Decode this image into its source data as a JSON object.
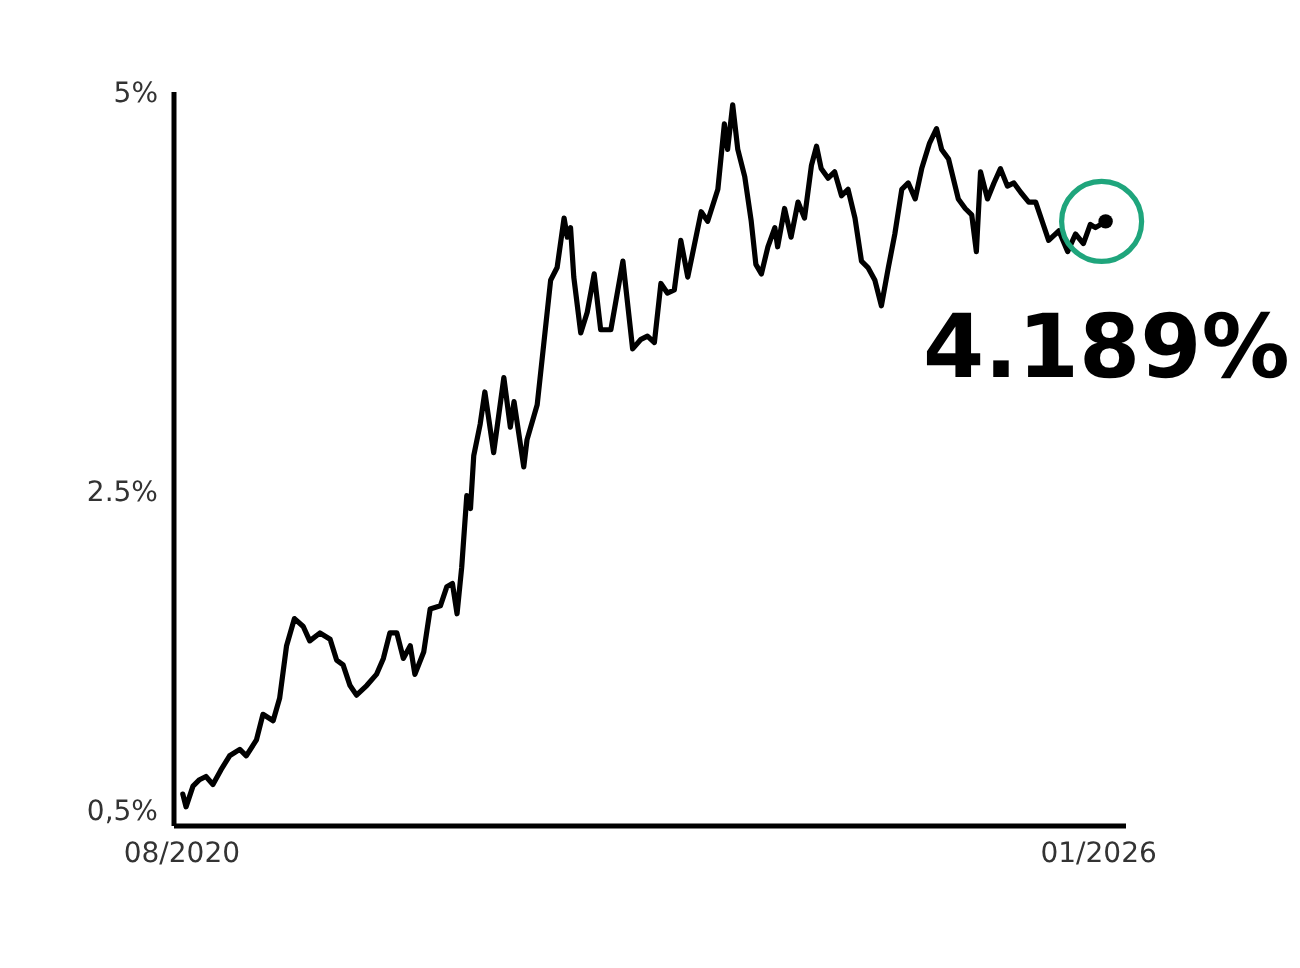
{
  "chart_data": {
    "type": "line",
    "x": [
      "2020-08-03",
      "2020-08-10",
      "2020-08-25",
      "2020-09-08",
      "2020-09-22",
      "2020-10-07",
      "2020-10-24",
      "2020-11-12",
      "2020-12-04",
      "2020-12-18",
      "2021-01-09",
      "2021-01-23",
      "2021-02-14",
      "2021-02-28",
      "2021-03-15",
      "2021-04-01",
      "2021-04-20",
      "2021-05-04",
      "2021-05-26",
      "2021-06-17",
      "2021-07-01",
      "2021-07-15",
      "2021-07-30",
      "2021-08-13",
      "2021-09-04",
      "2021-09-25",
      "2021-10-10",
      "2021-10-24",
      "2021-11-08",
      "2021-11-22",
      "2021-12-07",
      "2021-12-17",
      "2022-01-05",
      "2022-01-19",
      "2022-02-10",
      "2022-02-24",
      "2022-03-08",
      "2022-03-18",
      "2022-03-28",
      "2022-04-08",
      "2022-04-16",
      "2022-04-23",
      "2022-05-07",
      "2022-05-17",
      "2022-06-05",
      "2022-06-27",
      "2022-07-11",
      "2022-07-19",
      "2022-08-09",
      "2022-08-16",
      "2022-09-07",
      "2022-10-06",
      "2022-10-20",
      "2022-11-04",
      "2022-11-11",
      "2022-11-18",
      "2022-11-25",
      "2022-12-10",
      "2022-12-24",
      "2023-01-08",
      "2023-01-22",
      "2023-02-13",
      "2023-03-11",
      "2023-04-01",
      "2023-04-19",
      "2023-05-03",
      "2023-05-18",
      "2023-06-01",
      "2023-06-15",
      "2023-06-30",
      "2023-07-14",
      "2023-07-29",
      "2023-08-27",
      "2023-09-10",
      "2023-10-02",
      "2023-10-16",
      "2023-10-23",
      "2023-11-03",
      "2023-11-14",
      "2023-11-29",
      "2023-12-13",
      "2023-12-23",
      "2024-01-04",
      "2024-01-18",
      "2024-02-02",
      "2024-02-08",
      "2024-02-23",
      "2024-03-08",
      "2024-03-23",
      "2024-04-06",
      "2024-04-21",
      "2024-05-02",
      "2024-05-12",
      "2024-05-27",
      "2024-06-10",
      "2024-06-25",
      "2024-07-09",
      "2024-07-24",
      "2024-08-07",
      "2024-08-21",
      "2024-09-05",
      "2024-09-19",
      "2024-10-04",
      "2024-10-18",
      "2024-11-02",
      "2024-11-16",
      "2024-12-01",
      "2024-12-15",
      "2025-01-01",
      "2025-01-16",
      "2025-01-27",
      "2025-02-11",
      "2025-03-04",
      "2025-03-19",
      "2025-04-02",
      "2025-04-12",
      "2025-04-21",
      "2025-05-06",
      "2025-05-20",
      "2025-06-03",
      "2025-06-18",
      "2025-07-02",
      "2025-07-17",
      "2025-08-03",
      "2025-08-18",
      "2025-09-01",
      "2025-09-15",
      "2025-10-07",
      "2025-10-26",
      "2025-11-12",
      "2025-11-29",
      "2025-12-14",
      "2025-12-25",
      "2026-01-16"
    ],
    "values": [
      0.6,
      0.52,
      0.65,
      0.69,
      0.71,
      0.66,
      0.75,
      0.84,
      0.88,
      0.84,
      0.94,
      1.1,
      1.06,
      1.2,
      1.53,
      1.7,
      1.65,
      1.56,
      1.61,
      1.57,
      1.44,
      1.41,
      1.28,
      1.22,
      1.28,
      1.35,
      1.45,
      1.61,
      1.61,
      1.45,
      1.53,
      1.35,
      1.49,
      1.76,
      1.78,
      1.9,
      1.92,
      1.73,
      2.02,
      2.47,
      2.39,
      2.72,
      2.92,
      3.12,
      2.74,
      3.21,
      2.9,
      3.06,
      2.65,
      2.82,
      3.04,
      3.82,
      3.9,
      4.21,
      4.09,
      4.15,
      3.84,
      3.49,
      3.62,
      3.86,
      3.51,
      3.51,
      3.94,
      3.39,
      3.45,
      3.47,
      3.43,
      3.8,
      3.74,
      3.76,
      4.07,
      3.84,
      4.25,
      4.19,
      4.39,
      4.8,
      4.64,
      4.92,
      4.64,
      4.47,
      4.19,
      3.92,
      3.86,
      4.03,
      4.15,
      4.03,
      4.27,
      4.09,
      4.31,
      4.21,
      4.54,
      4.66,
      4.52,
      4.46,
      4.5,
      4.35,
      4.39,
      4.21,
      3.94,
      3.9,
      3.82,
      3.66,
      3.9,
      4.11,
      4.39,
      4.43,
      4.33,
      4.52,
      4.68,
      4.77,
      4.64,
      4.58,
      4.33,
      4.27,
      4.23,
      4.0,
      4.5,
      4.33,
      4.43,
      4.52,
      4.41,
      4.43,
      4.37,
      4.31,
      4.31,
      4.19,
      4.07,
      4.13,
      4.0,
      4.11,
      4.05,
      4.17,
      4.15,
      4.189
    ],
    "color": "#000000",
    "xlim": [
      "2020-07-15",
      "2026-03-01"
    ],
    "xticks": [
      {
        "value": "2020-08",
        "label": "08/2020"
      },
      {
        "value": "2026-01",
        "label": "01/2026"
      }
    ],
    "ylim": [
      0.4,
      5.0
    ],
    "yticks": [
      {
        "value": 0.5,
        "label": "0,5%"
      },
      {
        "value": 2.5,
        "label": "2.5%"
      },
      {
        "value": 5,
        "label": "5%"
      }
    ],
    "annotations": [
      {
        "text": "4.189%",
        "x": "2026-01-16",
        "y": 4.189
      }
    ]
  }
}
